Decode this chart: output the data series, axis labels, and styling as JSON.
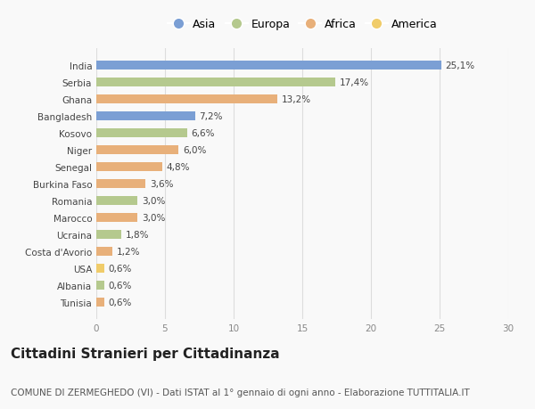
{
  "countries": [
    "India",
    "Serbia",
    "Ghana",
    "Bangladesh",
    "Kosovo",
    "Niger",
    "Senegal",
    "Burkina Faso",
    "Romania",
    "Marocco",
    "Ucraina",
    "Costa d'Avorio",
    "USA",
    "Albania",
    "Tunisia"
  ],
  "values": [
    25.1,
    17.4,
    13.2,
    7.2,
    6.6,
    6.0,
    4.8,
    3.6,
    3.0,
    3.0,
    1.8,
    1.2,
    0.6,
    0.6,
    0.6
  ],
  "labels": [
    "25,1%",
    "17,4%",
    "13,2%",
    "7,2%",
    "6,6%",
    "6,0%",
    "4,8%",
    "3,6%",
    "3,0%",
    "3,0%",
    "1,8%",
    "1,2%",
    "0,6%",
    "0,6%",
    "0,6%"
  ],
  "continents": [
    "Asia",
    "Europa",
    "Africa",
    "Asia",
    "Europa",
    "Africa",
    "Africa",
    "Africa",
    "Europa",
    "Africa",
    "Europa",
    "Africa",
    "America",
    "Europa",
    "Africa"
  ],
  "continent_colors": {
    "Asia": "#7b9fd4",
    "Europa": "#b5c98e",
    "Africa": "#e8b07a",
    "America": "#f0cc6a"
  },
  "legend_order": [
    "Asia",
    "Europa",
    "Africa",
    "America"
  ],
  "xlim": [
    0,
    30
  ],
  "xticks": [
    0,
    5,
    10,
    15,
    20,
    25,
    30
  ],
  "title": "Cittadini Stranieri per Cittadinanza",
  "subtitle": "COMUNE DI ZERMEGHEDO (VI) - Dati ISTAT al 1° gennaio di ogni anno - Elaborazione TUTTITALIA.IT",
  "bg_color": "#f9f9f9",
  "bar_height": 0.55,
  "title_fontsize": 11,
  "subtitle_fontsize": 7.5,
  "label_fontsize": 7.5,
  "tick_fontsize": 7.5,
  "legend_fontsize": 9
}
